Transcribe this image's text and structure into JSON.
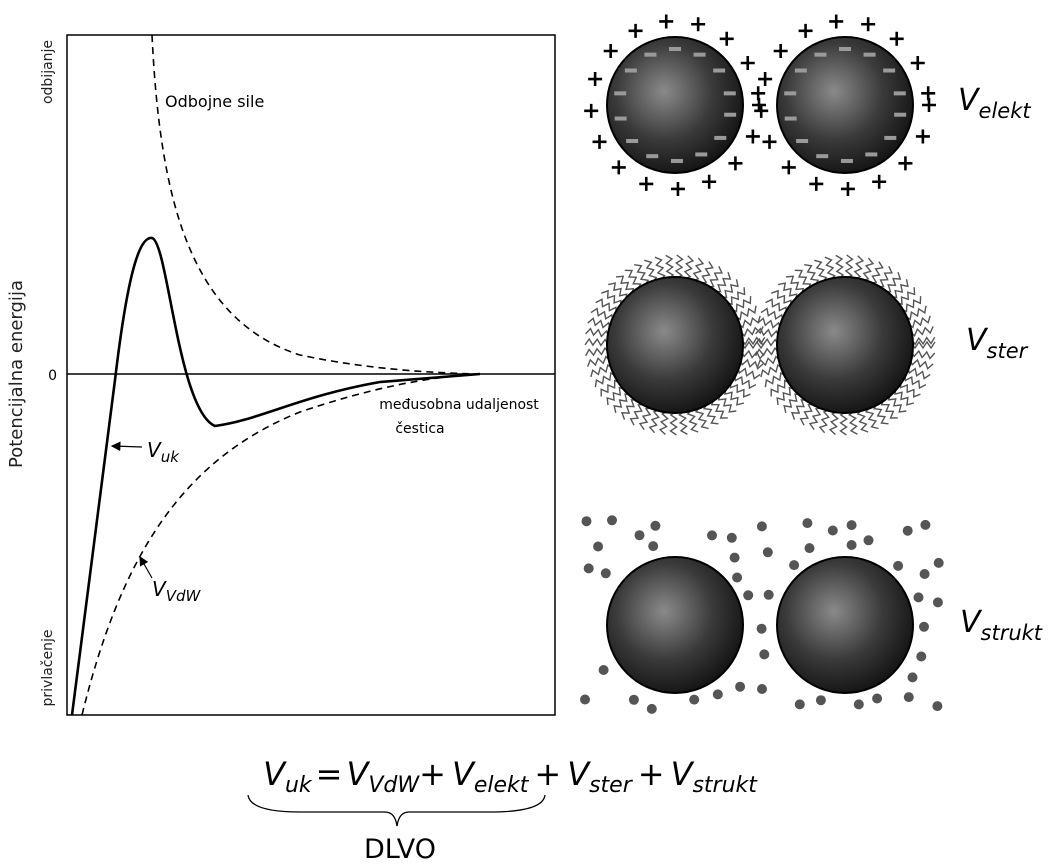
{
  "chart_panel": {
    "y_top_label": "odbijanje",
    "y_axis_label": "Potencijalna energija",
    "y_bottom_label": "privlačenje",
    "zero_label": "0",
    "repulsive_label": "Odbojne sile",
    "x_axis_label": [
      "međusobna udaljenost",
      "čestica"
    ],
    "total_label": {
      "symbol": "V",
      "subscript": "uk"
    },
    "vdw_label": {
      "symbol": "V",
      "subscript": "VdW"
    }
  },
  "particles": [
    {
      "symbol": "V",
      "subscript": "elekt"
    },
    {
      "symbol": "V",
      "subscript": "ster"
    },
    {
      "symbol": "V",
      "subscript": "strukt"
    }
  ],
  "equation": {
    "lhs": {
      "symbol": "V",
      "subscript": "uk"
    },
    "equals": "=",
    "plus": "+",
    "terms": [
      {
        "symbol": "V",
        "subscript": "VdW"
      },
      {
        "symbol": "V",
        "subscript": "elekt"
      },
      {
        "symbol": "V",
        "subscript": "ster"
      },
      {
        "symbol": "V",
        "subscript": "strukt"
      }
    ],
    "brace_label": "DLVO"
  }
}
